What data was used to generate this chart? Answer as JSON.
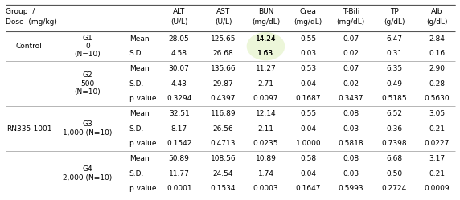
{
  "bg_color": "#ffffff",
  "font_size": 6.5,
  "highlight_color": "#ddf0bb",
  "header_line_color": "#444444",
  "sep_line_color": "#888888",
  "groups": [
    {
      "group_label": "Control",
      "show_group": true,
      "subgroup": "G1",
      "dose_line1": "0",
      "dose_line2": "(N=10)",
      "rows": [
        {
          "stat": "Mean",
          "vals": [
            "28.05",
            "125.65",
            "14.24",
            "0.55",
            "0.07",
            "6.47",
            "2.84"
          ]
        },
        {
          "stat": "S.D.",
          "vals": [
            "4.58",
            "26.68",
            "1.63",
            "0.03",
            "0.02",
            "0.31",
            "0.16"
          ]
        }
      ]
    },
    {
      "group_label": "RN335-1001",
      "show_group": true,
      "subgroup": "G2",
      "dose_line1": "500",
      "dose_line2": "(N=10)",
      "rows": [
        {
          "stat": "Mean",
          "vals": [
            "30.07",
            "135.66",
            "11.27",
            "0.53",
            "0.07",
            "6.35",
            "2.90"
          ]
        },
        {
          "stat": "S.D.",
          "vals": [
            "4.43",
            "29.87",
            "2.71",
            "0.04",
            "0.02",
            "0.49",
            "0.28"
          ]
        },
        {
          "stat": "p value",
          "vals": [
            "0.3294",
            "0.4397",
            "0.0097",
            "0.1687",
            "0.3437",
            "0.5185",
            "0.5630"
          ]
        }
      ]
    },
    {
      "group_label": "",
      "show_group": false,
      "subgroup": "G3",
      "dose_line1": "1,000 (N=10)",
      "dose_line2": "",
      "rows": [
        {
          "stat": "Mean",
          "vals": [
            "32.51",
            "116.89",
            "12.14",
            "0.55",
            "0.08",
            "6.52",
            "3.05"
          ]
        },
        {
          "stat": "S.D.",
          "vals": [
            "8.17",
            "26.56",
            "2.11",
            "0.04",
            "0.03",
            "0.36",
            "0.21"
          ]
        },
        {
          "stat": "p value",
          "vals": [
            "0.1542",
            "0.4713",
            "0.0235",
            "1.0000",
            "0.5818",
            "0.7398",
            "0.0227"
          ]
        }
      ]
    },
    {
      "group_label": "",
      "show_group": false,
      "subgroup": "G4",
      "dose_line1": "2,000 (N=10)",
      "dose_line2": "",
      "rows": [
        {
          "stat": "Mean",
          "vals": [
            "50.89",
            "108.56",
            "10.89",
            "0.58",
            "0.08",
            "6.68",
            "3.17"
          ]
        },
        {
          "stat": "S.D.",
          "vals": [
            "11.77",
            "24.54",
            "1.74",
            "0.04",
            "0.03",
            "0.50",
            "0.21"
          ]
        },
        {
          "stat": "p value",
          "vals": [
            "0.0001",
            "0.1534",
            "0.0003",
            "0.1647",
            "0.5993",
            "0.2724",
            "0.0009"
          ]
        }
      ]
    }
  ],
  "col_names": [
    "ALT",
    "AST",
    "BUN",
    "Crea",
    "T-Bili",
    "TP",
    "Alb"
  ],
  "col_units": [
    "(U/L)",
    "(U/L)",
    "(mg/dL)",
    "(mg/dL)",
    "(mg/dL)",
    "(g/dL)",
    "(g/dL)"
  ],
  "highlight_group": 0,
  "highlight_row": 0,
  "highlight_col": 2
}
